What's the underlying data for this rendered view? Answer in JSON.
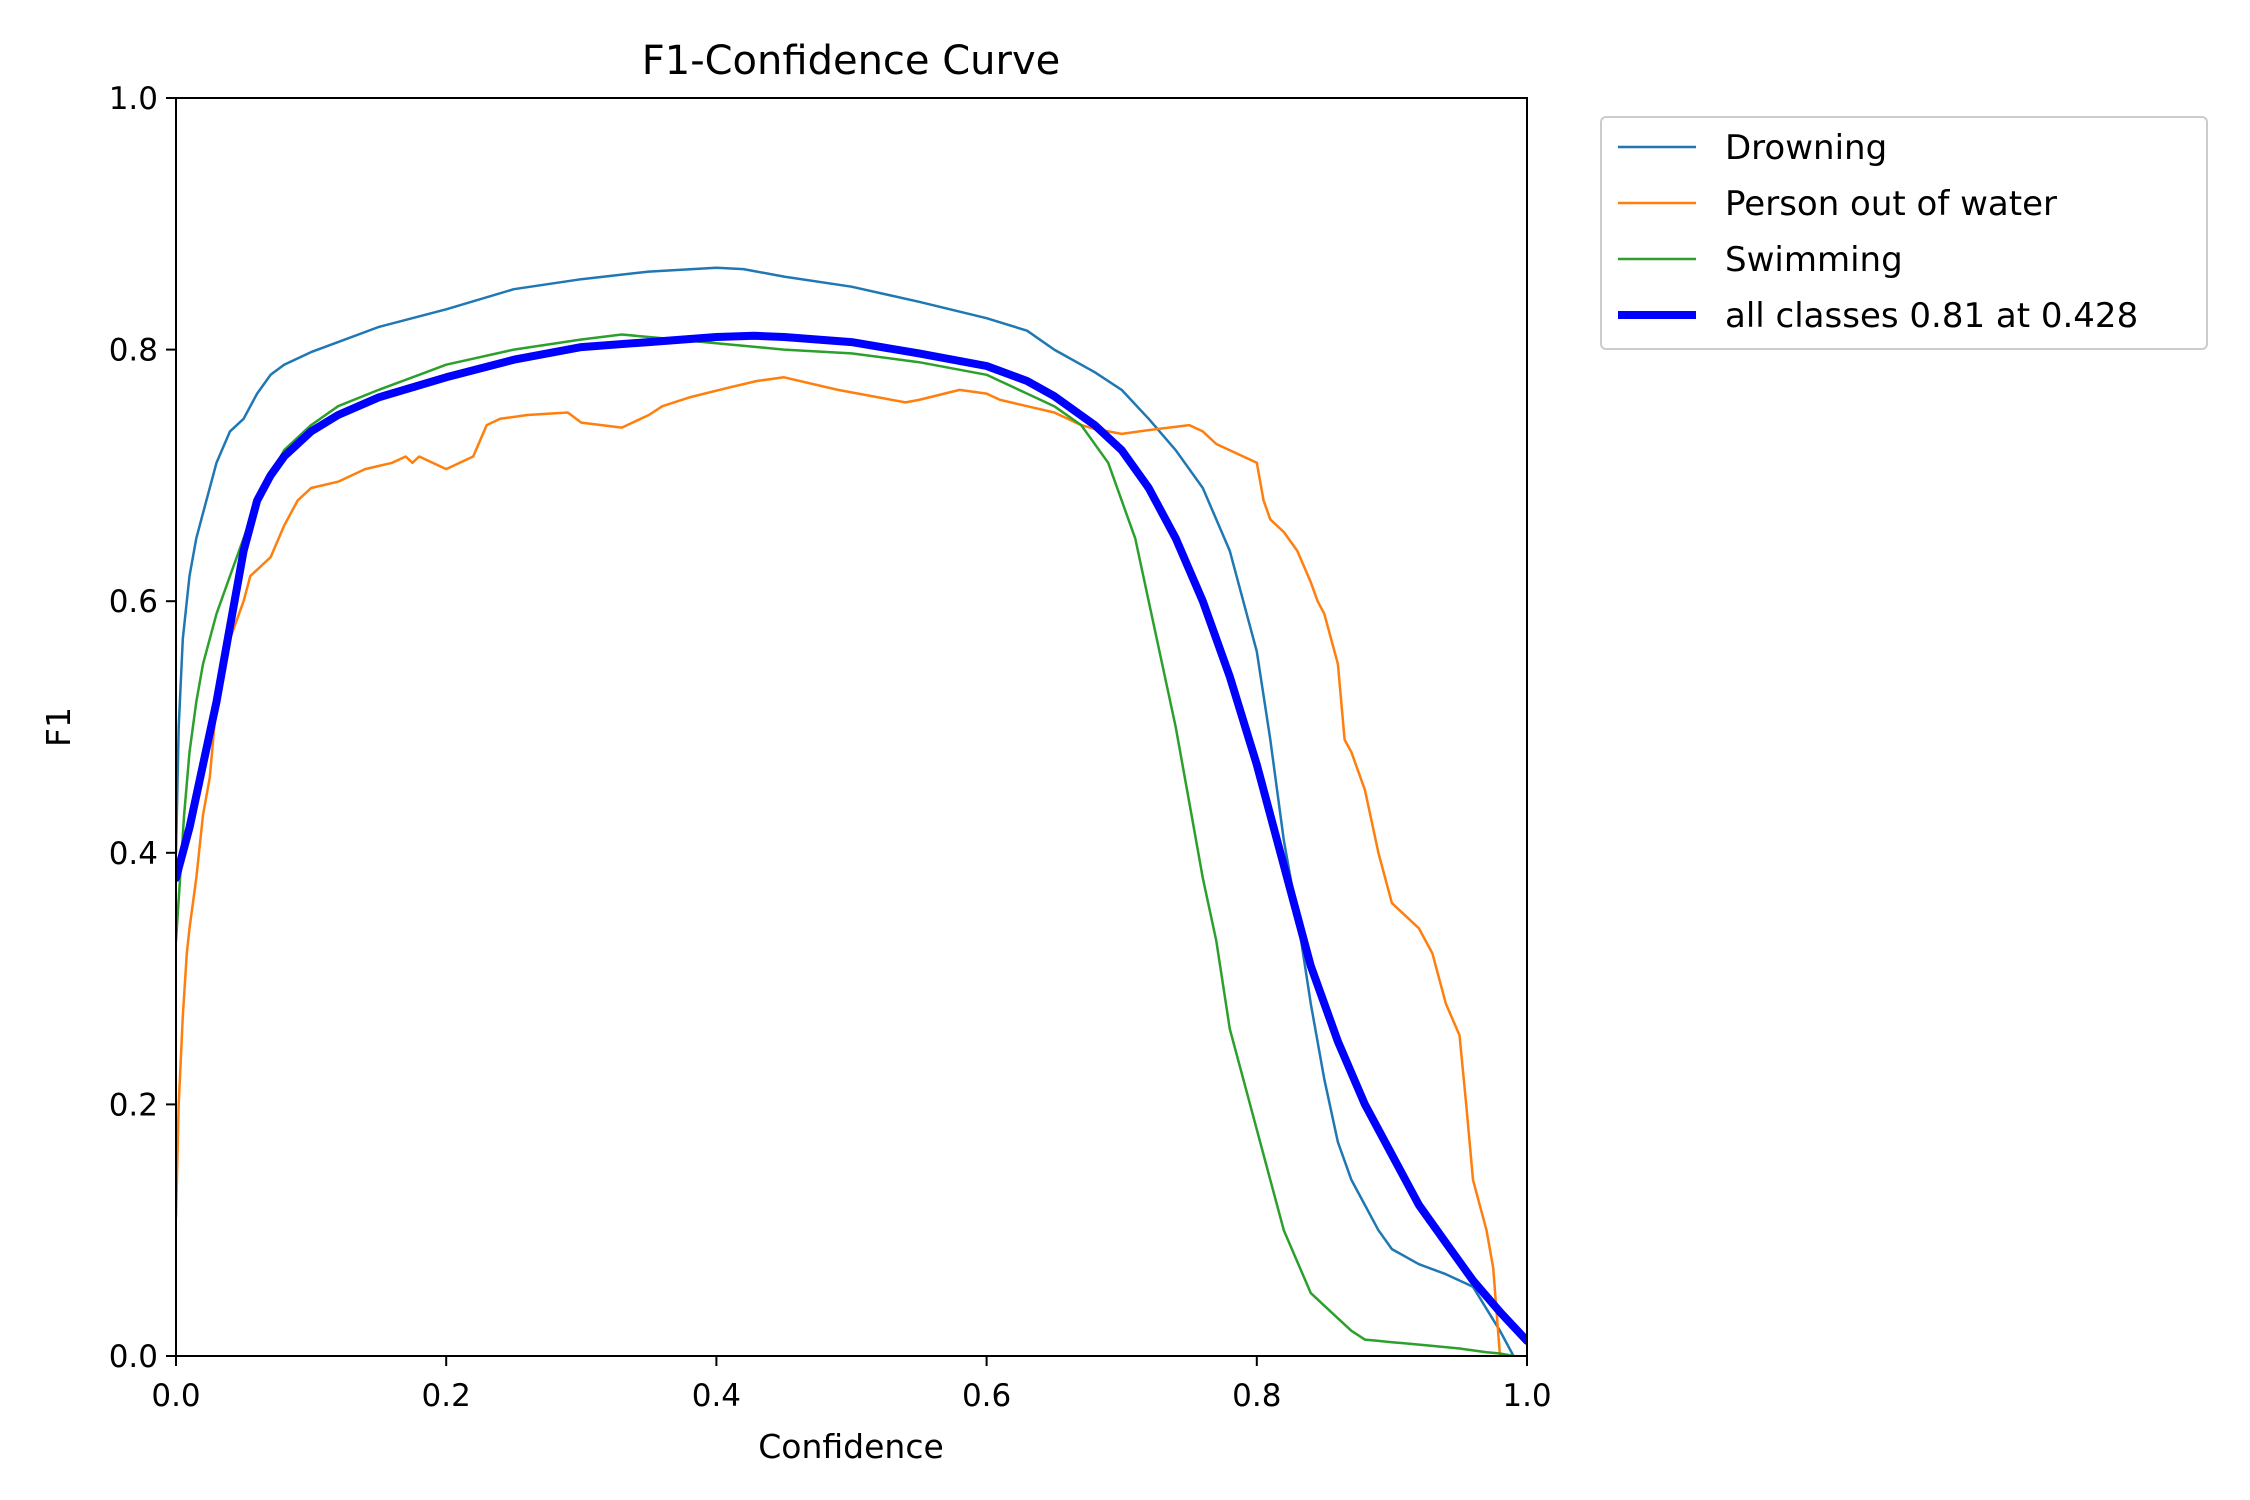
{
  "chart_data": {
    "type": "line",
    "title": "F1-Confidence Curve",
    "xlabel": "Confidence",
    "ylabel": "F1",
    "xlim": [
      0,
      1
    ],
    "ylim": [
      0,
      1
    ],
    "xticks": [
      "0.0",
      "0.2",
      "0.4",
      "0.6",
      "0.8",
      "1.0"
    ],
    "yticks": [
      "0.0",
      "0.2",
      "0.4",
      "0.6",
      "0.8",
      "1.0"
    ],
    "grid": false,
    "legend_position": "outside-top-right",
    "series": [
      {
        "name": "Drowning",
        "color": "#1f77b4",
        "width": "thin",
        "x": [
          0.0,
          0.002,
          0.005,
          0.01,
          0.015,
          0.02,
          0.03,
          0.04,
          0.05,
          0.06,
          0.07,
          0.08,
          0.1,
          0.12,
          0.15,
          0.2,
          0.25,
          0.3,
          0.35,
          0.4,
          0.42,
          0.45,
          0.5,
          0.55,
          0.6,
          0.63,
          0.65,
          0.68,
          0.7,
          0.72,
          0.74,
          0.76,
          0.78,
          0.8,
          0.81,
          0.82,
          0.83,
          0.84,
          0.85,
          0.86,
          0.87,
          0.88,
          0.89,
          0.9,
          0.92,
          0.94,
          0.96,
          0.98,
          0.99
        ],
        "y": [
          0.4,
          0.5,
          0.57,
          0.62,
          0.65,
          0.67,
          0.71,
          0.735,
          0.745,
          0.765,
          0.78,
          0.788,
          0.798,
          0.806,
          0.818,
          0.832,
          0.848,
          0.856,
          0.862,
          0.865,
          0.864,
          0.858,
          0.85,
          0.838,
          0.825,
          0.815,
          0.8,
          0.782,
          0.768,
          0.745,
          0.72,
          0.69,
          0.64,
          0.56,
          0.49,
          0.41,
          0.35,
          0.28,
          0.22,
          0.17,
          0.14,
          0.12,
          0.1,
          0.085,
          0.073,
          0.065,
          0.055,
          0.02,
          0.0
        ]
      },
      {
        "name": "Person out of water",
        "color": "#ff7f0e",
        "width": "thin",
        "x": [
          0.0,
          0.002,
          0.005,
          0.008,
          0.01,
          0.015,
          0.02,
          0.025,
          0.03,
          0.04,
          0.05,
          0.055,
          0.06,
          0.065,
          0.07,
          0.08,
          0.09,
          0.1,
          0.12,
          0.14,
          0.16,
          0.17,
          0.175,
          0.18,
          0.2,
          0.22,
          0.23,
          0.24,
          0.26,
          0.29,
          0.3,
          0.33,
          0.35,
          0.36,
          0.38,
          0.41,
          0.43,
          0.45,
          0.49,
          0.52,
          0.54,
          0.55,
          0.58,
          0.6,
          0.61,
          0.63,
          0.65,
          0.66,
          0.67,
          0.68,
          0.69,
          0.7,
          0.72,
          0.75,
          0.76,
          0.77,
          0.78,
          0.8,
          0.805,
          0.81,
          0.82,
          0.83,
          0.84,
          0.845,
          0.85,
          0.86,
          0.865,
          0.87,
          0.88,
          0.89,
          0.9,
          0.92,
          0.93,
          0.94,
          0.95,
          0.955,
          0.96,
          0.97,
          0.975,
          0.98
        ],
        "y": [
          0.11,
          0.2,
          0.27,
          0.32,
          0.34,
          0.38,
          0.43,
          0.46,
          0.52,
          0.57,
          0.6,
          0.62,
          0.625,
          0.63,
          0.635,
          0.66,
          0.68,
          0.69,
          0.695,
          0.705,
          0.71,
          0.715,
          0.71,
          0.715,
          0.705,
          0.715,
          0.74,
          0.745,
          0.748,
          0.75,
          0.742,
          0.738,
          0.748,
          0.755,
          0.762,
          0.77,
          0.775,
          0.778,
          0.768,
          0.762,
          0.758,
          0.76,
          0.768,
          0.765,
          0.76,
          0.755,
          0.75,
          0.745,
          0.74,
          0.737,
          0.735,
          0.733,
          0.736,
          0.74,
          0.735,
          0.725,
          0.72,
          0.71,
          0.68,
          0.665,
          0.655,
          0.64,
          0.615,
          0.6,
          0.59,
          0.55,
          0.49,
          0.48,
          0.45,
          0.4,
          0.36,
          0.34,
          0.32,
          0.28,
          0.255,
          0.2,
          0.14,
          0.1,
          0.07,
          0.0
        ]
      },
      {
        "name": "Swimming",
        "color": "#2ca02c",
        "width": "thin",
        "x": [
          0.0,
          0.003,
          0.006,
          0.01,
          0.015,
          0.02,
          0.03,
          0.04,
          0.05,
          0.06,
          0.07,
          0.08,
          0.1,
          0.12,
          0.15,
          0.18,
          0.2,
          0.25,
          0.3,
          0.33,
          0.35,
          0.4,
          0.45,
          0.5,
          0.55,
          0.6,
          0.63,
          0.65,
          0.67,
          0.69,
          0.7,
          0.71,
          0.72,
          0.73,
          0.74,
          0.75,
          0.76,
          0.77,
          0.78,
          0.79,
          0.8,
          0.81,
          0.82,
          0.83,
          0.84,
          0.85,
          0.86,
          0.87,
          0.88,
          0.89,
          0.9,
          0.91,
          0.93,
          0.95,
          0.97,
          0.98,
          0.99
        ],
        "y": [
          0.33,
          0.38,
          0.43,
          0.48,
          0.52,
          0.55,
          0.59,
          0.62,
          0.65,
          0.68,
          0.7,
          0.72,
          0.74,
          0.755,
          0.768,
          0.78,
          0.788,
          0.8,
          0.808,
          0.812,
          0.81,
          0.805,
          0.8,
          0.797,
          0.79,
          0.78,
          0.765,
          0.755,
          0.74,
          0.71,
          0.68,
          0.65,
          0.6,
          0.55,
          0.5,
          0.44,
          0.38,
          0.33,
          0.26,
          0.22,
          0.18,
          0.14,
          0.1,
          0.075,
          0.05,
          0.04,
          0.03,
          0.02,
          0.013,
          0.012,
          0.011,
          0.01,
          0.008,
          0.006,
          0.003,
          0.002,
          0.0
        ]
      },
      {
        "name": "all classes 0.81 at 0.428",
        "color": "#0000ff",
        "width": "thick",
        "x": [
          0.0,
          0.01,
          0.02,
          0.03,
          0.04,
          0.05,
          0.06,
          0.07,
          0.08,
          0.1,
          0.12,
          0.15,
          0.2,
          0.25,
          0.3,
          0.35,
          0.4,
          0.428,
          0.45,
          0.5,
          0.55,
          0.6,
          0.63,
          0.65,
          0.68,
          0.7,
          0.72,
          0.74,
          0.76,
          0.78,
          0.8,
          0.82,
          0.84,
          0.86,
          0.88,
          0.9,
          0.92,
          0.94,
          0.96,
          0.98,
          1.0
        ],
        "y": [
          0.38,
          0.42,
          0.47,
          0.52,
          0.58,
          0.64,
          0.68,
          0.7,
          0.715,
          0.735,
          0.748,
          0.762,
          0.778,
          0.792,
          0.802,
          0.806,
          0.81,
          0.811,
          0.81,
          0.806,
          0.797,
          0.787,
          0.775,
          0.763,
          0.74,
          0.72,
          0.69,
          0.65,
          0.6,
          0.54,
          0.47,
          0.39,
          0.31,
          0.25,
          0.2,
          0.16,
          0.12,
          0.09,
          0.06,
          0.035,
          0.012
        ]
      }
    ]
  }
}
